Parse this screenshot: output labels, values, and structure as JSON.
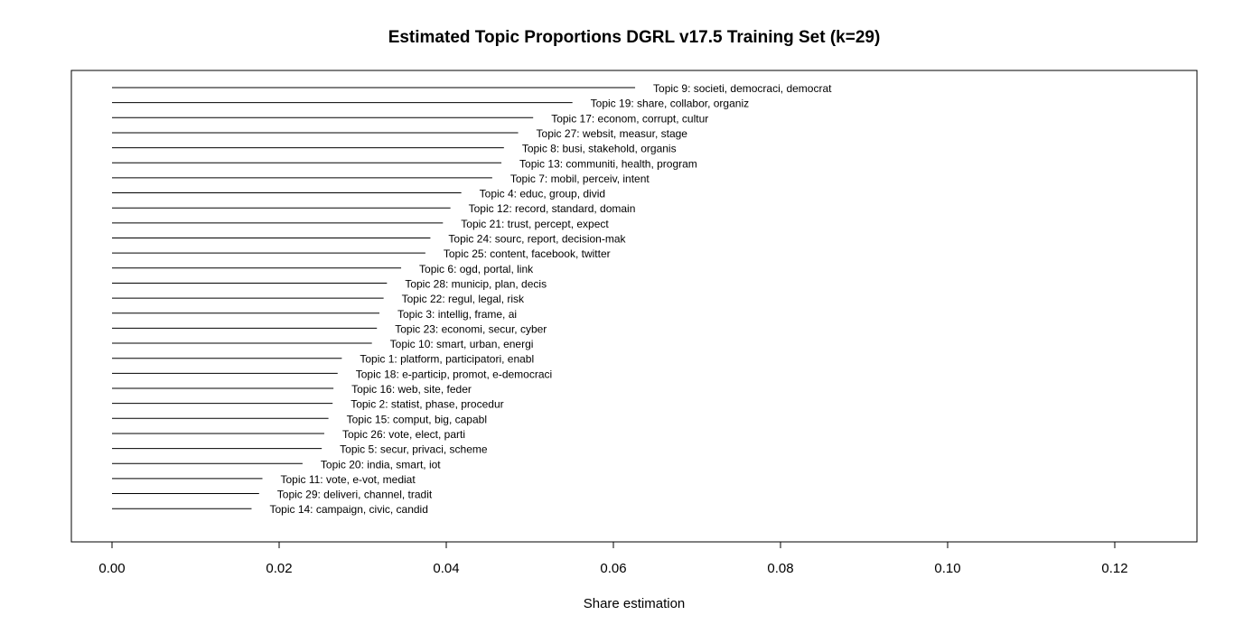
{
  "chart_data": {
    "type": "bar",
    "orientation": "horizontal",
    "title": "Estimated Topic Proportions DGRL v17.5 Training Set (k=29)",
    "xlabel": "Share estimation",
    "ylabel": "",
    "xlim": [
      0,
      0.13
    ],
    "xticks": [
      "0.00",
      "0.02",
      "0.04",
      "0.06",
      "0.08",
      "0.10",
      "0.12"
    ],
    "grid": false,
    "legend": "none",
    "bar_color": "#000000",
    "categories": [
      "Topic 9: societi, democraci, democrat",
      "Topic 19: share, collabor, organiz",
      "Topic 17: econom, corrupt, cultur",
      "Topic 27: websit, measur, stage",
      "Topic 8: busi, stakehold, organis",
      "Topic 13: communiti, health, program",
      "Topic 7: mobil, perceiv, intent",
      "Topic 4: educ, group, divid",
      "Topic 12: record, standard, domain",
      "Topic 21: trust, percept, expect",
      "Topic 24: sourc, report, decision-mak",
      "Topic 25: content, facebook, twitter",
      "Topic 6: ogd, portal, link",
      "Topic 28: municip, plan, decis",
      "Topic 22: regul, legal, risk",
      "Topic 3: intellig, frame, ai",
      "Topic 23: economi, secur, cyber",
      "Topic 10: smart, urban, energi",
      "Topic 1: platform, participatori, enabl",
      "Topic 18: e-particip, promot, e-democraci",
      "Topic 16: web, site, feder",
      "Topic 2: statist, phase, procedur",
      "Topic 15: comput, big, capabl",
      "Topic 26: vote, elect, parti",
      "Topic 5: secur, privaci, scheme",
      "Topic 20: india, smart, iot",
      "Topic 11: vote, e-vot, mediat",
      "Topic 29: deliveri, channel, tradit",
      "Topic 14: campaign, civic, candid"
    ],
    "values": [
      0.0626,
      0.0551,
      0.0504,
      0.0486,
      0.0469,
      0.0466,
      0.0455,
      0.0418,
      0.0405,
      0.0396,
      0.0381,
      0.0375,
      0.0346,
      0.0329,
      0.0325,
      0.032,
      0.0317,
      0.0311,
      0.0275,
      0.027,
      0.0265,
      0.0264,
      0.0259,
      0.0254,
      0.0251,
      0.0228,
      0.018,
      0.0176,
      0.0167
    ]
  }
}
